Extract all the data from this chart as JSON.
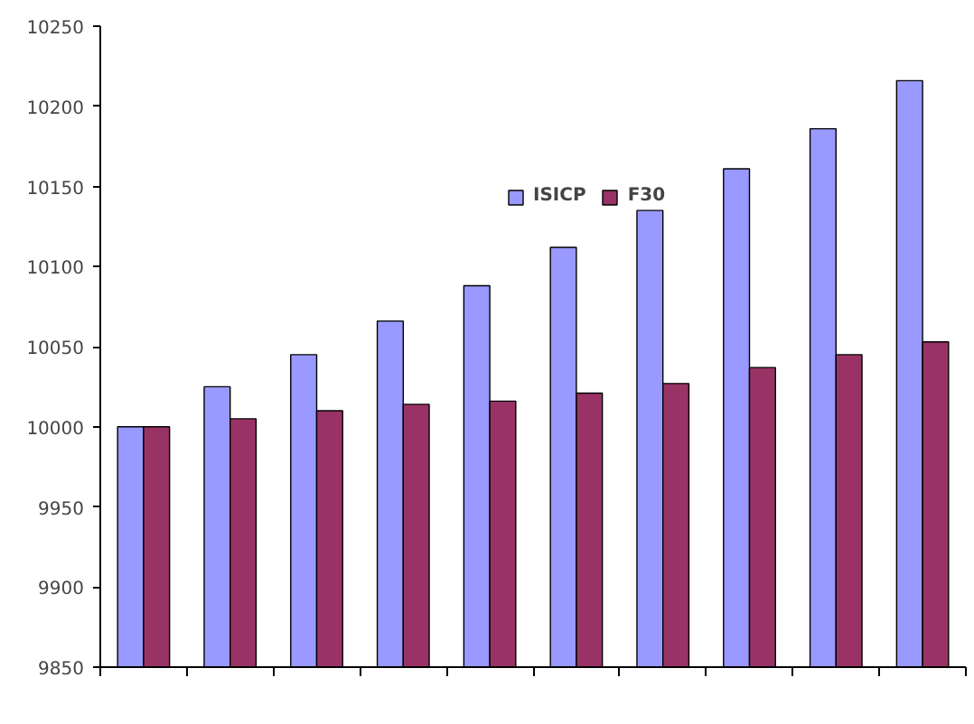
{
  "chart_data": {
    "type": "bar",
    "categories": [
      null,
      null,
      null,
      null,
      null,
      null,
      null,
      null,
      null,
      null
    ],
    "series": [
      {
        "name": "ISICP",
        "color": "#9999ff",
        "values": [
          10000,
          10025,
          10045,
          10066,
          10088,
          10112,
          10135,
          10161,
          10186,
          10216
        ]
      },
      {
        "name": "F30",
        "color": "#993366",
        "values": [
          10000,
          10005,
          10010,
          10014,
          10016,
          10021,
          10027,
          10037,
          10045,
          10053
        ]
      }
    ],
    "ylim": [
      9850,
      10250
    ],
    "yticks": [
      9850,
      9900,
      9950,
      10000,
      10050,
      10100,
      10150,
      10200,
      10250
    ],
    "grid": false,
    "legend": "top right"
  }
}
